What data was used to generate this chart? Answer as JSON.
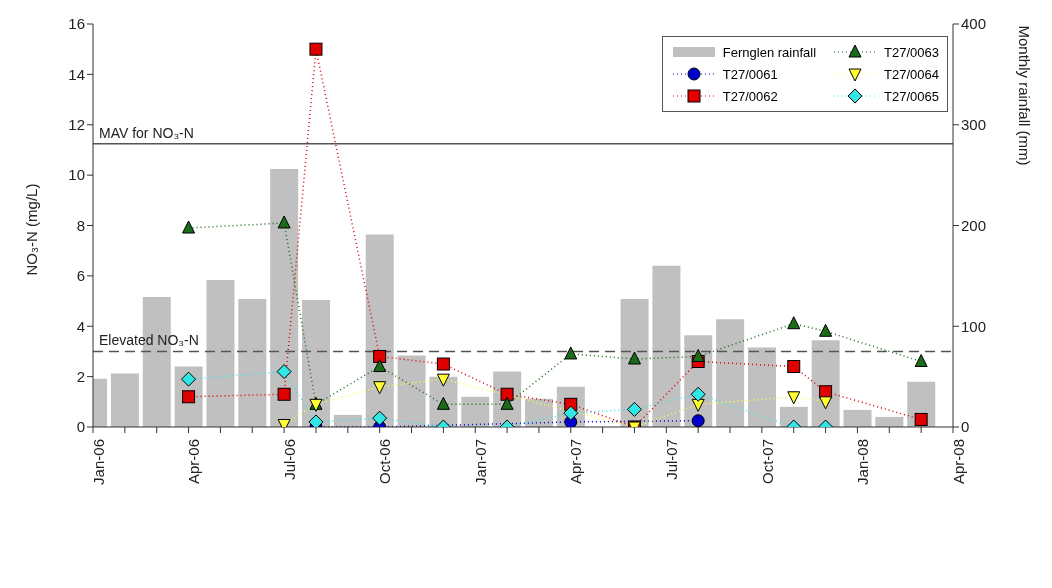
{
  "chart_data": {
    "type": "line",
    "ylabel": "NO₃-N (mg/L)",
    "y2label": "Monthly rainfall (mm)",
    "x": [
      "2006-04",
      "2006-07",
      "2006-08",
      "2006-10",
      "2006-12",
      "2007-02",
      "2007-04",
      "2007-06",
      "2007-08",
      "2007-11",
      "2007-12",
      "2008-03"
    ],
    "xlim": [
      "2006-01",
      "2008-04"
    ],
    "xticks": [
      {
        "value": "2006-01",
        "label": "Jan-06"
      },
      {
        "value": "2006-02",
        "label": null
      },
      {
        "value": "2006-03",
        "label": null
      },
      {
        "value": "2006-04",
        "label": "Apr-06"
      },
      {
        "value": "2006-05",
        "label": null
      },
      {
        "value": "2006-06",
        "label": null
      },
      {
        "value": "2006-07",
        "label": "Jul-06"
      },
      {
        "value": "2006-08",
        "label": null
      },
      {
        "value": "2006-09",
        "label": null
      },
      {
        "value": "2006-10",
        "label": "Oct-06"
      },
      {
        "value": "2006-11",
        "label": null
      },
      {
        "value": "2006-12",
        "label": null
      },
      {
        "value": "2007-01",
        "label": "Jan-07"
      },
      {
        "value": "2007-02",
        "label": null
      },
      {
        "value": "2007-03",
        "label": null
      },
      {
        "value": "2007-04",
        "label": "Apr-07"
      },
      {
        "value": "2007-05",
        "label": null
      },
      {
        "value": "2007-06",
        "label": null
      },
      {
        "value": "2007-07",
        "label": "Jul-07"
      },
      {
        "value": "2007-08",
        "label": null
      },
      {
        "value": "2007-09",
        "label": null
      },
      {
        "value": "2007-10",
        "label": "Oct-07"
      },
      {
        "value": "2007-11",
        "label": null
      },
      {
        "value": "2007-12",
        "label": null
      },
      {
        "value": "2008-01",
        "label": "Jan-08"
      },
      {
        "value": "2008-02",
        "label": null
      },
      {
        "value": "2008-03",
        "label": null
      },
      {
        "value": "2008-04",
        "label": "Apr-08"
      }
    ],
    "ylim": [
      0,
      16
    ],
    "yticks": [
      0,
      2,
      4,
      6,
      8,
      10,
      12,
      14,
      16
    ],
    "y2lim": [
      0,
      400
    ],
    "y2ticks": [
      0,
      100,
      200,
      300,
      400
    ],
    "legend": "top right",
    "line_style": "dotted",
    "series": [
      {
        "name": "Fernglen rainfall",
        "type": "bar",
        "axis": "y2",
        "color": "#c0c0c0",
        "x": [
          "2006-01",
          "2006-02",
          "2006-03",
          "2006-04",
          "2006-05",
          "2006-06",
          "2006-07",
          "2006-08",
          "2006-09",
          "2006-10",
          "2006-11",
          "2006-12",
          "2007-01",
          "2007-02",
          "2007-03",
          "2007-04",
          "2007-05",
          "2007-06",
          "2007-07",
          "2007-08",
          "2007-09",
          "2007-10",
          "2007-11",
          "2007-12",
          "2008-01",
          "2008-02",
          "2008-03"
        ],
        "values": [
          48,
          53,
          129,
          60,
          146,
          127,
          256,
          126,
          12,
          191,
          71,
          50,
          30,
          55,
          28,
          40,
          null,
          127,
          160,
          91,
          107,
          79,
          20,
          86,
          17,
          10,
          45
        ]
      },
      {
        "name": "T27/0061",
        "color": "#0000cc",
        "marker": "circle",
        "values": [
          null,
          null,
          0,
          0,
          null,
          null,
          0.2,
          null,
          0.25,
          null,
          null,
          null
        ]
      },
      {
        "name": "T27/0062",
        "color": "#e00000",
        "marker": "square",
        "values": [
          1.2,
          1.3,
          15,
          2.8,
          2.5,
          1.3,
          0.9,
          0,
          2.6,
          2.4,
          1.4,
          0.3
        ]
      },
      {
        "name": "T27/0063",
        "color": "#1a6b1a",
        "marker": "triangle",
        "values": [
          7.9,
          8.1,
          0.9,
          2.4,
          0.9,
          0.9,
          2.9,
          2.7,
          2.8,
          4.1,
          3.8,
          2.6
        ]
      },
      {
        "name": "T27/0064",
        "color": "#ffff33",
        "marker": "triangle-down",
        "values": [
          null,
          0.1,
          0.9,
          1.6,
          1.9,
          null,
          null,
          0,
          0.9,
          1.2,
          1.0,
          null
        ]
      },
      {
        "name": "T27/0065",
        "color": "#33e6e6",
        "marker": "diamond",
        "values": [
          1.9,
          2.2,
          0.2,
          0.35,
          0,
          0,
          0.55,
          0.7,
          1.3,
          0,
          0,
          null
        ]
      }
    ],
    "ref_lines": [
      {
        "axis": "y",
        "value": 11.25,
        "label": "MAV for NO₃-N",
        "line_style": "solid",
        "color": "#555555"
      },
      {
        "axis": "y",
        "value": 3,
        "label": "Elevated NO₃-N",
        "line_style": "dashed",
        "color": "#555555"
      }
    ]
  }
}
